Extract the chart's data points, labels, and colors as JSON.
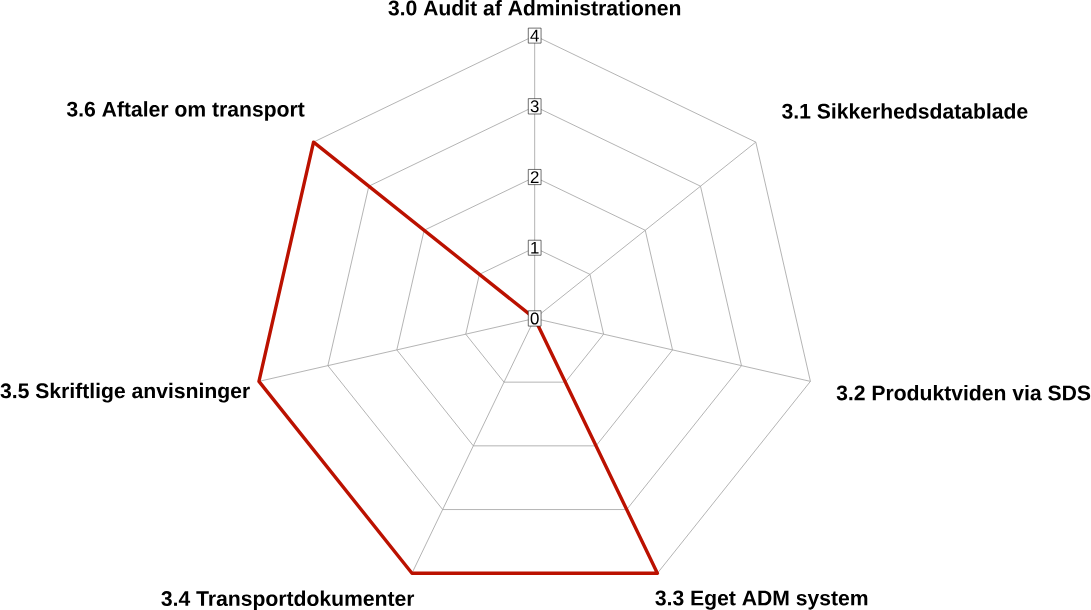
{
  "chart_data": {
    "type": "radar",
    "categories": [
      "3.0 Audit af Administrationen",
      "3.1 Sikkerhedsdatablade",
      "3.2 Produktviden via SDS",
      "3.3 Eget ADM system",
      "3.4 Transportdokumenter",
      "3.5 Skriftlige anvisninger",
      "3.6 Aftaler om transport"
    ],
    "series": [
      {
        "color": "#bb1100",
        "values": [
          0,
          0,
          0,
          4,
          4,
          4,
          4
        ]
      }
    ],
    "ylim": [
      0,
      4
    ],
    "yticks": [
      0,
      1,
      2,
      3,
      4
    ],
    "grid": true
  }
}
